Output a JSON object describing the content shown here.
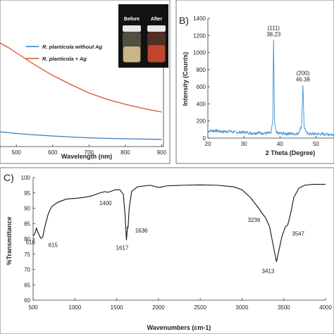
{
  "chart_data": [
    {
      "panel": "A",
      "type": "line",
      "panel_label": "",
      "xlabel": "Wavelength (nm)",
      "ylabel": "",
      "xlim": [
        455,
        905
      ],
      "ylim": [
        0,
        1
      ],
      "x_ticks": [
        500,
        600,
        700,
        800,
        900
      ],
      "grid": false,
      "legend_position": "top-right",
      "inset_labels": [
        "Before",
        "After"
      ],
      "series": [
        {
          "name": "R. planticola without Ag",
          "color": "#3a7bbf",
          "points": [
            [
              455,
              0.105
            ],
            [
              500,
              0.093
            ],
            [
              550,
              0.083
            ],
            [
              600,
              0.075
            ],
            [
              650,
              0.068
            ],
            [
              700,
              0.062
            ],
            [
              750,
              0.058
            ],
            [
              800,
              0.055
            ],
            [
              850,
              0.053
            ],
            [
              900,
              0.051
            ]
          ]
        },
        {
          "name": "R. planticola + Ag",
          "color": "#d4542f",
          "points": [
            [
              455,
              0.735
            ],
            [
              480,
              0.7
            ],
            [
              500,
              0.665
            ],
            [
              530,
              0.615
            ],
            [
              560,
              0.565
            ],
            [
              600,
              0.505
            ],
            [
              650,
              0.44
            ],
            [
              700,
              0.38
            ],
            [
              750,
              0.335
            ],
            [
              800,
              0.3
            ],
            [
              850,
              0.27
            ],
            [
              900,
              0.245
            ]
          ]
        }
      ]
    },
    {
      "panel": "B",
      "type": "line",
      "panel_label": "B)",
      "xlabel": "2 Theta (Degree)",
      "ylabel": "Intensity (Counts)",
      "xlim": [
        20,
        55
      ],
      "ylim": [
        0,
        1400
      ],
      "x_ticks": [
        20,
        30,
        40,
        50
      ],
      "y_ticks": [
        0,
        200,
        400,
        600,
        800,
        1000,
        1200,
        1400
      ],
      "grid": false,
      "color": "#3a8fd1",
      "peaks": [
        {
          "x": 38.23,
          "y": 1150,
          "hkl": "(111)",
          "label": "38.23"
        },
        {
          "x": 46.38,
          "y": 620,
          "hkl": "(200)",
          "label": "46.38"
        }
      ],
      "baseline": [
        [
          20,
          82
        ],
        [
          22,
          88
        ],
        [
          24,
          76
        ],
        [
          26,
          80
        ],
        [
          28,
          66
        ],
        [
          30,
          70
        ],
        [
          32,
          58
        ],
        [
          34,
          62
        ],
        [
          36,
          56
        ],
        [
          37.5,
          60
        ],
        [
          38.0,
          200
        ],
        [
          38.23,
          1150
        ],
        [
          38.5,
          180
        ],
        [
          39,
          58
        ],
        [
          41,
          54
        ],
        [
          43,
          52
        ],
        [
          45,
          50
        ],
        [
          46.0,
          140
        ],
        [
          46.38,
          620
        ],
        [
          46.7,
          140
        ],
        [
          47.5,
          52
        ],
        [
          50,
          48
        ],
        [
          53,
          46
        ],
        [
          55,
          44
        ]
      ]
    },
    {
      "panel": "C",
      "type": "line",
      "panel_label": "C)",
      "xlabel": "Wavenumbers (cm-1)",
      "ylabel": "%Transmittance",
      "xlim": [
        500,
        4000
      ],
      "ylim": [
        60,
        100
      ],
      "x_ticks": [
        500,
        1000,
        1500,
        2000,
        2500,
        3000,
        3500,
        4000
      ],
      "y_ticks": [
        60,
        65,
        70,
        75,
        80,
        85,
        90,
        95,
        100
      ],
      "grid": false,
      "color": "#111111",
      "annotations": [
        {
          "label": "518",
          "x": 518,
          "y": 81.5
        },
        {
          "label": "615",
          "x": 615,
          "y": 80.6
        },
        {
          "label": "1400",
          "x": 1400,
          "y": 95.2
        },
        {
          "label": "1617",
          "x": 1617,
          "y": 79.6
        },
        {
          "label": "1636",
          "x": 1636,
          "y": 83.5
        },
        {
          "label": "3236",
          "x": 3236,
          "y": 88.5
        },
        {
          "label": "3413",
          "x": 3413,
          "y": 72.5
        },
        {
          "label": "3547",
          "x": 3547,
          "y": 84.5
        }
      ],
      "points": [
        [
          500,
          81.0
        ],
        [
          518,
          81.5
        ],
        [
          540,
          83.5
        ],
        [
          560,
          82.0
        ],
        [
          590,
          80.2
        ],
        [
          615,
          80.6
        ],
        [
          640,
          84.0
        ],
        [
          680,
          88.0
        ],
        [
          720,
          90.5
        ],
        [
          800,
          92.0
        ],
        [
          900,
          93.0
        ],
        [
          1000,
          93.2
        ],
        [
          1100,
          93.5
        ],
        [
          1200,
          94.0
        ],
        [
          1300,
          95.0
        ],
        [
          1360,
          95.4
        ],
        [
          1400,
          95.2
        ],
        [
          1440,
          95.6
        ],
        [
          1480,
          96.0
        ],
        [
          1540,
          96.0
        ],
        [
          1580,
          94.5
        ],
        [
          1600,
          88.0
        ],
        [
          1617,
          79.6
        ],
        [
          1630,
          84.0
        ],
        [
          1636,
          83.5
        ],
        [
          1650,
          90.0
        ],
        [
          1680,
          95.5
        ],
        [
          1750,
          97.0
        ],
        [
          1900,
          97.5
        ],
        [
          2000,
          96.8
        ],
        [
          2050,
          97.0
        ],
        [
          2100,
          97.3
        ],
        [
          2300,
          97.5
        ],
        [
          2500,
          97.6
        ],
        [
          2700,
          97.5
        ],
        [
          2900,
          97.0
        ],
        [
          3000,
          96.0
        ],
        [
          3100,
          93.5
        ],
        [
          3200,
          90.0
        ],
        [
          3236,
          88.5
        ],
        [
          3280,
          87.0
        ],
        [
          3330,
          84.0
        ],
        [
          3380,
          77.0
        ],
        [
          3413,
          72.5
        ],
        [
          3440,
          76.0
        ],
        [
          3480,
          81.0
        ],
        [
          3520,
          84.0
        ],
        [
          3547,
          84.5
        ],
        [
          3580,
          88.0
        ],
        [
          3620,
          93.5
        ],
        [
          3680,
          96.5
        ],
        [
          3750,
          97.5
        ],
        [
          3850,
          97.8
        ],
        [
          4000,
          97.8
        ]
      ]
    }
  ]
}
